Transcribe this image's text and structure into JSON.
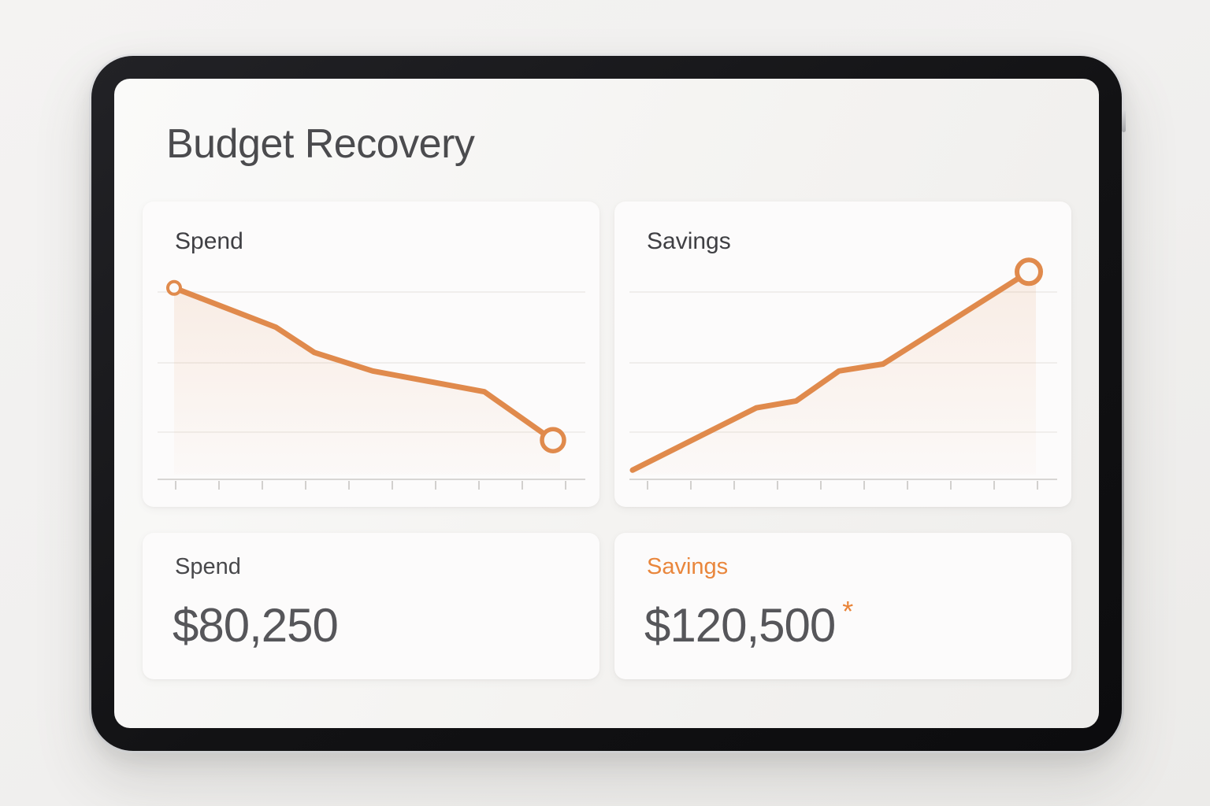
{
  "page": {
    "title": "Budget Recovery"
  },
  "colors": {
    "accent_orange": "#E08A4C",
    "label_orange": "#E9863C",
    "asterisk_orange": "#E98438",
    "title_gray": "#4B4B4E",
    "value_gray": "#56565A",
    "card_background": "#FCFBFB",
    "axis_gray": "#D8D6D4",
    "gridline_gray": "#ECEAE7"
  },
  "charts": {
    "spend": {
      "label": "Spend"
    },
    "savings": {
      "label": "Savings"
    }
  },
  "summary": {
    "spend": {
      "label": "Spend",
      "value": "$80,250"
    },
    "savings": {
      "label": "Savings",
      "value": "$120,500",
      "footnote_marker": "*"
    }
  },
  "chart_data": [
    {
      "type": "line",
      "title": "Spend",
      "x": [
        1,
        2,
        3,
        4,
        5,
        6
      ],
      "values": [
        83,
        66,
        55,
        47,
        38,
        17
      ],
      "x_rel": [
        0,
        26.8,
        37.0,
        52.4,
        81.9,
        100
      ],
      "ylabel": "relative level (axes unlabeled; 0-100 = share of plot height)",
      "xlabel": "",
      "trend": "decreasing",
      "end_value_label": "$80,250",
      "line_color": "#E08A4C",
      "fill": "soft orange gradient under line",
      "markers": {
        "start": true,
        "end": true
      },
      "legend": "none",
      "grid": "3 faint horizontal gridlines",
      "x_ticks": 10
    },
    {
      "type": "line",
      "title": "Savings",
      "x": [
        1,
        2,
        3,
        4,
        5,
        6
      ],
      "values": [
        4,
        31,
        34,
        47,
        50,
        90
      ],
      "x_rel": [
        0,
        31.2,
        41.3,
        52.1,
        63.2,
        100
      ],
      "ylabel": "relative level (axes unlabeled; 0-100 = share of plot height)",
      "xlabel": "",
      "trend": "increasing",
      "end_value_label": "$120,500",
      "line_color": "#E08A4C",
      "fill": "soft orange gradient under line",
      "markers": {
        "start": false,
        "end": true
      },
      "legend": "none",
      "grid": "3 faint horizontal gridlines",
      "x_ticks": 10
    }
  ]
}
